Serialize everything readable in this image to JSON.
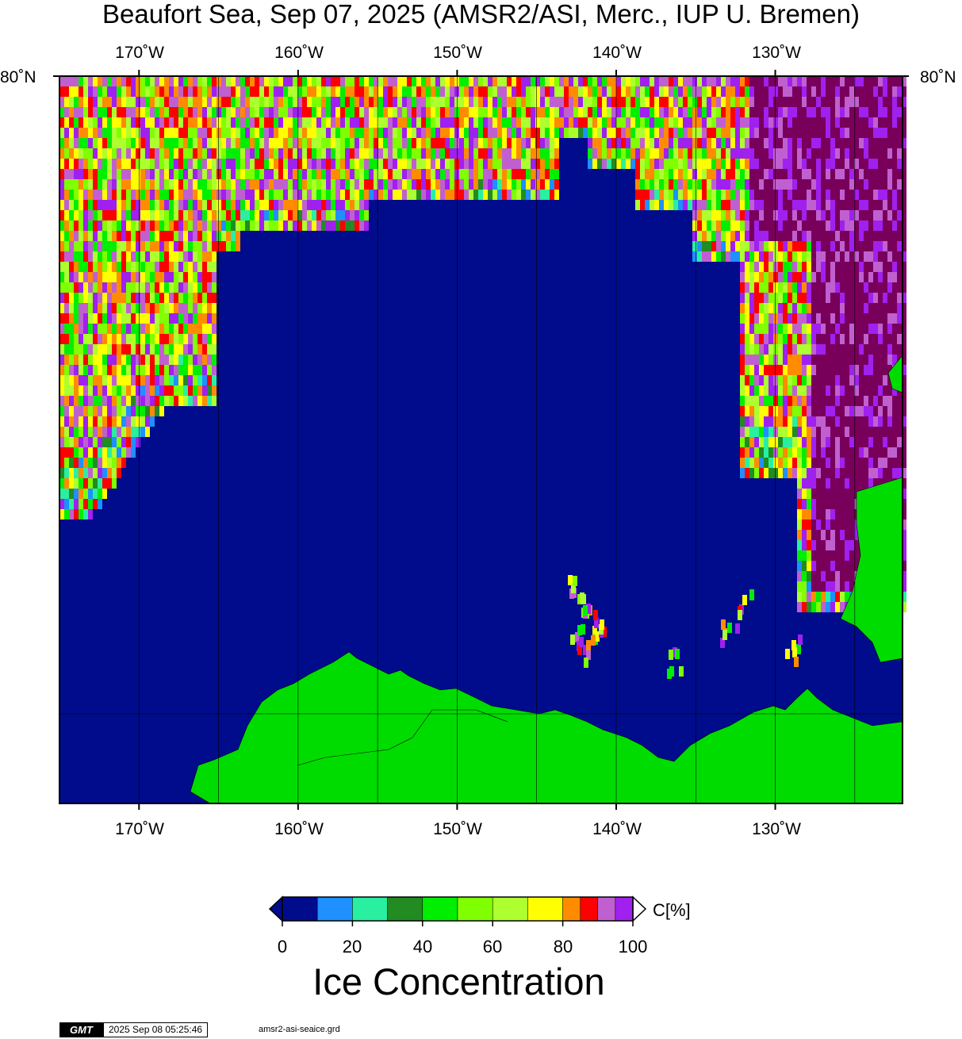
{
  "title": "Beaufort Sea, Sep 07, 2025 (AMSR2/ASI, Merc., IUP U. Bremen)",
  "map": {
    "projection": "Mercator",
    "lon_range": [
      -175,
      -122
    ],
    "lat_top_label": "80˚N",
    "longitude_ticks": [
      "170˚W",
      "160˚W",
      "150˚W",
      "140˚W",
      "130˚W"
    ],
    "longitude_tick_values": [
      -170,
      -160,
      -150,
      -140,
      -130
    ],
    "grid": true,
    "colors": {
      "ocean_open_water": "#000c8c",
      "land": "#00dc00",
      "frame": "#000000"
    }
  },
  "colorbar": {
    "label": "Ice Concentration",
    "unit_label": "C[%]",
    "tick_labels": [
      "0",
      "20",
      "40",
      "60",
      "80",
      "100"
    ],
    "tick_values": [
      0,
      20,
      40,
      60,
      80,
      100
    ],
    "bins": [
      {
        "from": 0,
        "to": 10,
        "color": "#000c8c"
      },
      {
        "from": 10,
        "to": 20,
        "color": "#1e90ff"
      },
      {
        "from": 20,
        "to": 30,
        "color": "#28f0a0"
      },
      {
        "from": 30,
        "to": 40,
        "color": "#228b22"
      },
      {
        "from": 40,
        "to": 50,
        "color": "#00ee00"
      },
      {
        "from": 50,
        "to": 60,
        "color": "#7fff00"
      },
      {
        "from": 60,
        "to": 70,
        "color": "#adff2f"
      },
      {
        "from": 70,
        "to": 80,
        "color": "#ffff00"
      },
      {
        "from": 80,
        "to": 85,
        "color": "#ff8c00"
      },
      {
        "from": 85,
        "to": 90,
        "color": "#ff0000"
      },
      {
        "from": 90,
        "to": 95,
        "color": "#c060d0"
      },
      {
        "from": 95,
        "to": 100,
        "color": "#a020f0"
      }
    ],
    "over_color": "#78005a"
  },
  "footer": {
    "logo_text": "GMT",
    "timestamp": "2025 Sep 08 05:25:46",
    "filename": "amsr2-asi-seaice.grd"
  }
}
